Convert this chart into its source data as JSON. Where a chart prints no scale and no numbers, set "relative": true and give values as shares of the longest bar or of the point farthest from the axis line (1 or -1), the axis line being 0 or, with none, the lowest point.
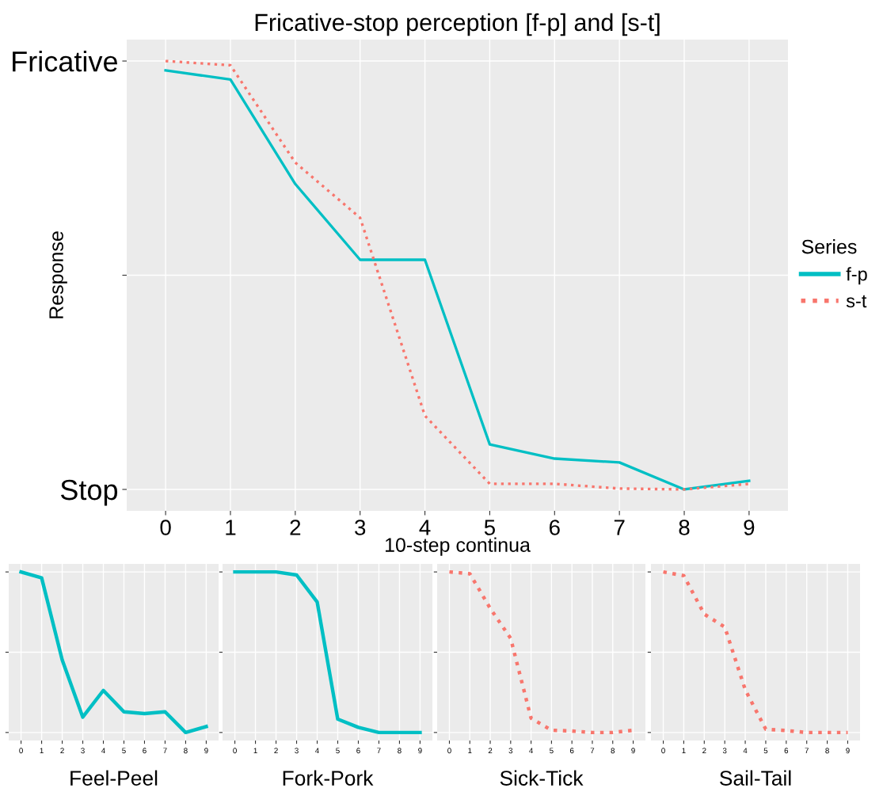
{
  "chart_data": [
    {
      "type": "line",
      "title": "Fricative-stop perception [f-p] and [s-t]",
      "xlabel": "10-step continua",
      "ylabel": "Response",
      "legend_title": "Series",
      "legend": "right",
      "grid": true,
      "relative": true,
      "categories": [
        "0",
        "1",
        "2",
        "3",
        "4",
        "5",
        "6",
        "7",
        "8",
        "9"
      ],
      "annotations": [
        "Fricative",
        "Stop"
      ],
      "series": [
        {
          "name": "f-p",
          "color": "#00bfc4",
          "line_style": "solid",
          "values": [
            0.978,
            0.957,
            0.713,
            0.536,
            0.536,
            0.105,
            0.072,
            0.063,
            0,
            0.02
          ]
        },
        {
          "name": "s-t",
          "color": "#f8766d",
          "line_style": "dotted",
          "values": [
            1.0,
            0.99,
            0.763,
            0.634,
            0.172,
            0.013,
            0.013,
            0.002,
            0,
            0.013
          ]
        }
      ]
    },
    {
      "type": "line",
      "xlabel": "Feel-Peel",
      "grid": true,
      "relative": true,
      "categories": [
        "0",
        "1",
        "2",
        "3",
        "4",
        "5",
        "6",
        "7",
        "8",
        "9"
      ],
      "series": [
        {
          "color": "#00bfc4",
          "line_style": "solid",
          "values": [
            1,
            0.963,
            0.452,
            0.096,
            0.262,
            0.129,
            0.118,
            0.129,
            0,
            0.037
          ]
        }
      ]
    },
    {
      "type": "line",
      "xlabel": "Fork-Pork",
      "grid": true,
      "relative": true,
      "categories": [
        "0",
        "1",
        "2",
        "3",
        "4",
        "5",
        "6",
        "7",
        "8",
        "9"
      ],
      "series": [
        {
          "color": "#00bfc4",
          "line_style": "solid",
          "values": [
            1,
            1,
            1,
            0.981,
            0.813,
            0.083,
            0.032,
            0,
            0,
            0
          ]
        }
      ]
    },
    {
      "type": "line",
      "xlabel": "Sick-Tick",
      "grid": true,
      "relative": true,
      "categories": [
        "0",
        "1",
        "2",
        "3",
        "4",
        "5",
        "6",
        "7",
        "8",
        "9"
      ],
      "series": [
        {
          "color": "#f8766d",
          "line_style": "dotted",
          "values": [
            1,
            0.989,
            0.773,
            0.586,
            0.089,
            0.014,
            0.009,
            0,
            0,
            0.014
          ]
        }
      ]
    },
    {
      "type": "line",
      "xlabel": "Sail-Tail",
      "grid": true,
      "relative": true,
      "categories": [
        "0",
        "1",
        "2",
        "3",
        "4",
        "5",
        "6",
        "7",
        "8",
        "9"
      ],
      "series": [
        {
          "color": "#f8766d",
          "line_style": "dotted",
          "values": [
            1,
            0.977,
            0.737,
            0.657,
            0.266,
            0.02,
            0.012,
            0,
            0,
            0
          ]
        }
      ]
    }
  ]
}
